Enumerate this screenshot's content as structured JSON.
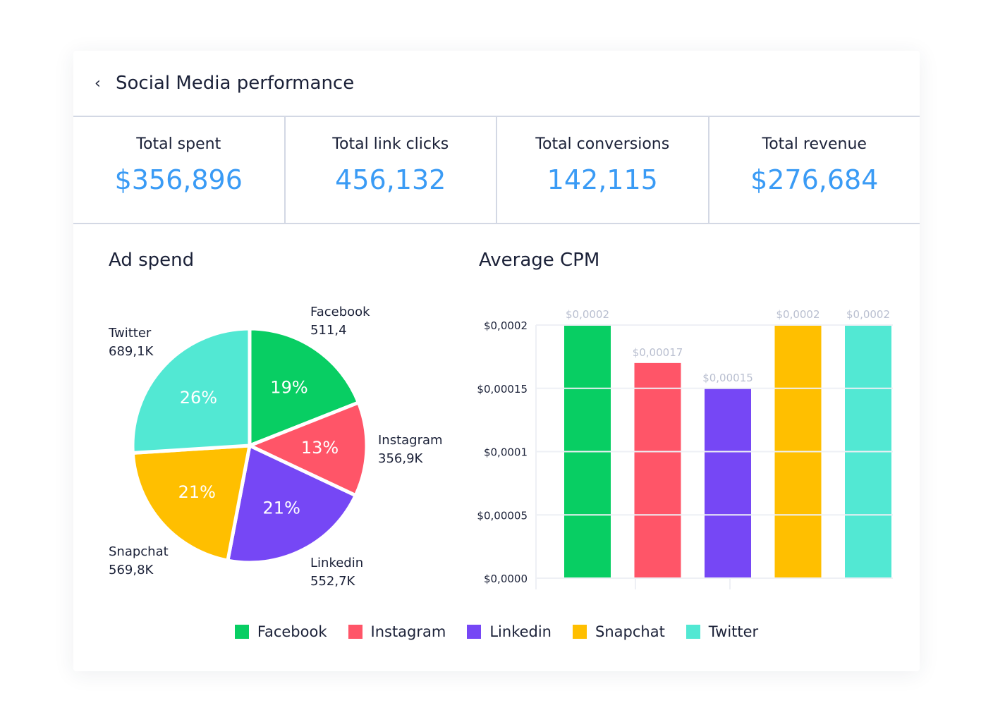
{
  "header": {
    "back_icon": "chevron-left-icon",
    "title": "Social Media performance"
  },
  "stats": [
    {
      "label": "Total spent",
      "value": "$356,896"
    },
    {
      "label": "Total link clicks",
      "value": "456,132"
    },
    {
      "label": "Total conversions",
      "value": "142,115"
    },
    {
      "label": "Total revenue",
      "value": "$276,684"
    }
  ],
  "colors": {
    "Facebook": "#08ce63",
    "Instagram": "#ff5568",
    "Linkedin": "#7647f5",
    "Snapchat": "#ffbf00",
    "Twitter": "#52e8d3",
    "accent": "#3a9bf5"
  },
  "chart_data": [
    {
      "type": "pie",
      "title": "Ad spend",
      "slices": [
        {
          "name": "Facebook",
          "value_label": "511,4",
          "percent": 19
        },
        {
          "name": "Instagram",
          "value_label": "356,9K",
          "percent": 13
        },
        {
          "name": "Linkedin",
          "value_label": "552,7K",
          "percent": 21
        },
        {
          "name": "Snapchat",
          "value_label": "569,8K",
          "percent": 21
        },
        {
          "name": "Twitter",
          "value_label": "689,1K",
          "percent": 26
        }
      ]
    },
    {
      "type": "bar",
      "title": "Average CPM",
      "categories": [
        "Facebook",
        "Instagram",
        "Linkedin",
        "Snapchat",
        "Twitter"
      ],
      "values": [
        0.0002,
        0.00017,
        0.00015,
        0.0002,
        0.0002
      ],
      "data_labels": [
        "$0,0002",
        "$0,00017",
        "$0,00015",
        "$0,0002",
        "$0,0002"
      ],
      "ylim": [
        0,
        0.0002
      ],
      "yticks": [
        0,
        5e-05,
        0.0001,
        0.00015,
        0.0002
      ],
      "ytick_labels": [
        "$0,0000",
        "$0,00005",
        "$0,0001",
        "$0,00015",
        "$0,0002"
      ],
      "grid": true
    }
  ],
  "legend": [
    "Facebook",
    "Instagram",
    "Linkedin",
    "Snapchat",
    "Twitter"
  ]
}
